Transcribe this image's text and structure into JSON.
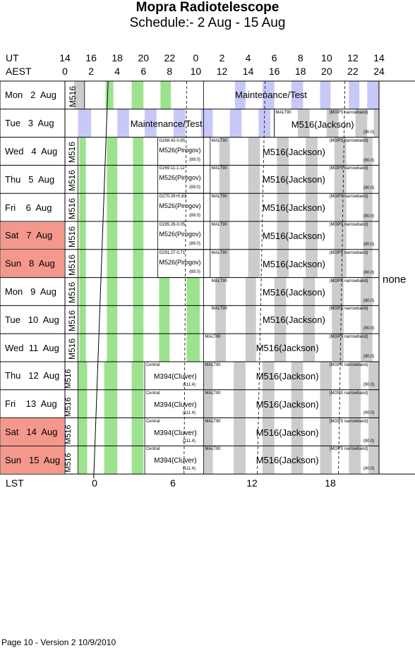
{
  "title": "Mopra Radiotelescope",
  "subtitle": "Schedule:- 2  Aug - 15 Aug",
  "axis": {
    "ut_label": "UT",
    "aest_label": "AEST",
    "ut_ticks": [
      "14",
      "16",
      "18",
      "20",
      "22",
      "0",
      "2",
      "4",
      "6",
      "8",
      "10",
      "12",
      "14"
    ],
    "aest_ticks": [
      "0",
      "2",
      "4",
      "6",
      "8",
      "10",
      "12",
      "14",
      "16",
      "18",
      "20",
      "22",
      "24"
    ],
    "lst_label": "LST",
    "lst_ticks": [
      "0",
      "6",
      "12",
      "18"
    ]
  },
  "colors": {
    "weekend": "#f4988c",
    "green": "#9de28f",
    "grey": "#cccccc",
    "lavender": "#c8c8f8"
  },
  "days": [
    {
      "label": "Mon   2  Aug",
      "weekend": false
    },
    {
      "label": "Tue   3  Aug",
      "weekend": false
    },
    {
      "label": "Wed   4  Aug",
      "weekend": false
    },
    {
      "label": "Thu   5  Aug",
      "weekend": false
    },
    {
      "label": "Fri    6  Aug",
      "weekend": false
    },
    {
      "label": "Sat   7  Aug",
      "weekend": true
    },
    {
      "label": "Sun   8  Aug",
      "weekend": true
    },
    {
      "label": "Mon   9  Aug",
      "weekend": false
    },
    {
      "label": "Tue   10  Aug",
      "weekend": false
    },
    {
      "label": "Wed  11  Aug",
      "weekend": false
    },
    {
      "label": "Thu   12  Aug",
      "weekend": false
    },
    {
      "label": "Fri    13  Aug",
      "weekend": false
    },
    {
      "label": "Sat   14  Aug",
      "weekend": true
    },
    {
      "label": "Sun   15  Aug",
      "weekend": true
    }
  ],
  "blocks": {
    "m516_short": "M516",
    "maintenance": "Maintenance/Test",
    "m516_jackson": "M516(Jackson)",
    "malt90": "MALT90",
    "mops_narrowband": "(MOPS narrowband)",
    "ninety": "(90.0)",
    "eighty_nine": "(89.0)",
    "m526_pirogov": "M526(Pirogov)",
    "central": "Central",
    "m394_cluver": "M394(Cluver)",
    "cluver_freq": "(111.4)",
    "g_wed": "G268.42-0.85",
    "g_thu": "G269.11-1.12",
    "g_fri": "G270.26+0.83",
    "g_sat": "G285.26-0.05",
    "g_sun": "G291.27-0.71"
  },
  "none_label": "none",
  "footer": "Page 10 - Version 2  10/9/2010"
}
